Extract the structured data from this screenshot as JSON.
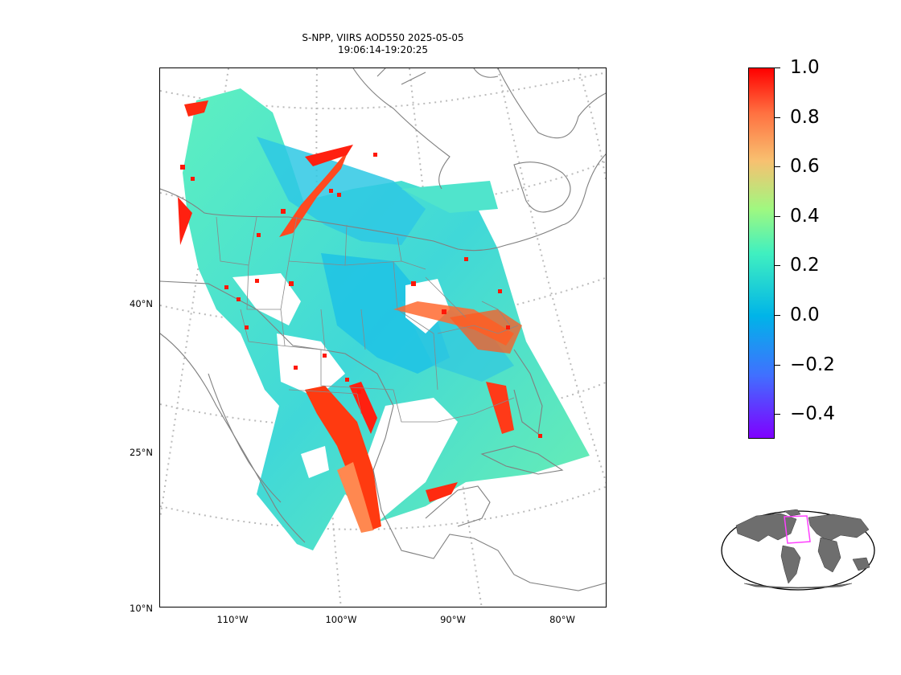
{
  "title": {
    "line1": "S-NPP, VIIRS AOD550 2025-05-05",
    "line2": "19:06:14-19:20:25"
  },
  "map": {
    "lat_labels": [
      "40°N",
      "25°N",
      "10°N"
    ],
    "lon_labels": [
      "110°W",
      "100°W",
      "90°W",
      "80°W"
    ],
    "land_color": "#ffffff",
    "coastline_color": "#808080",
    "gridline_color": "#bbbbbb",
    "no_data_color": "#ffffff"
  },
  "colorbar": {
    "colormap": "rainbow",
    "vmin": -0.5,
    "vmax": 1.0,
    "tick_labels": [
      "1.0",
      "0.8",
      "0.6",
      "0.4",
      "0.2",
      "0.0",
      "−0.2",
      "−0.4"
    ],
    "tick_values": [
      1.0,
      0.8,
      0.6,
      0.4,
      0.2,
      0.0,
      -0.2,
      -0.4
    ]
  },
  "inset": {
    "projection": "Robinson world overview",
    "ocean_color": "#ffffff",
    "land_color": "#6e6e6e",
    "extent_box_color": "#ff40ff"
  }
}
